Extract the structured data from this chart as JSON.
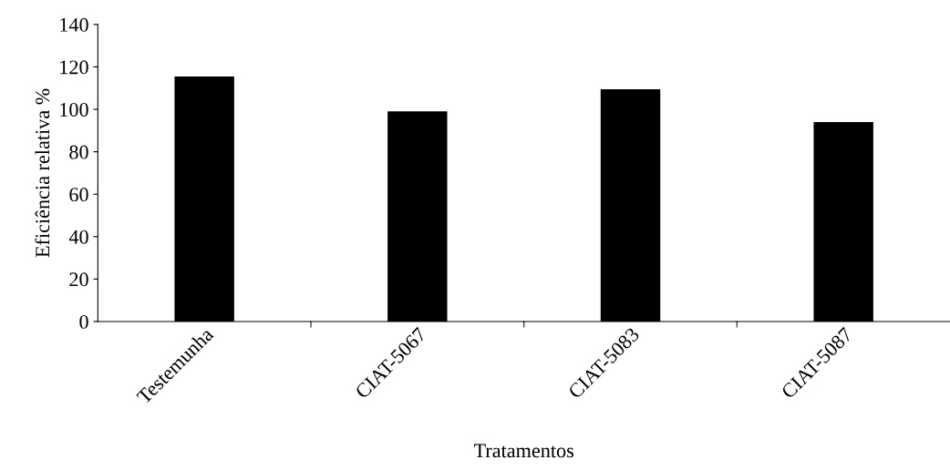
{
  "chart_data": {
    "type": "bar",
    "xlabel": "Tratamentos",
    "ylabel": "Eficiência relativa %",
    "categories": [
      "Testemunha",
      "CIAT-5067",
      "CIAT-5083",
      "CIAT-5087"
    ],
    "values": [
      115.5,
      99,
      109.5,
      94
    ],
    "color": "#000000",
    "ylim": [
      0,
      140
    ],
    "yticks": [
      0,
      20,
      40,
      60,
      80,
      100,
      120,
      140
    ],
    "grid": false,
    "legend": false
  }
}
